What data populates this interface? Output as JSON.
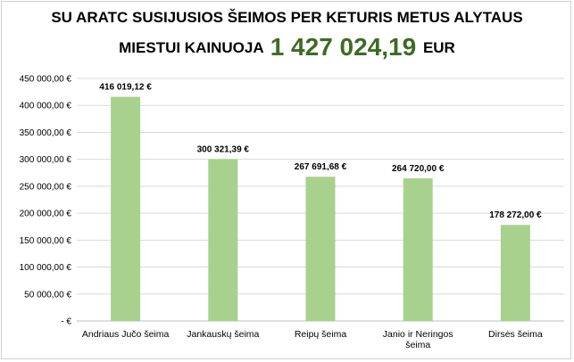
{
  "chart_data": {
    "type": "bar",
    "title_line1": "SU ARATC SUSIJUSIOS ŠEIMOS PER KETURIS METUS ALYTAUS",
    "title_line2_prefix": "MIESTUI KAINUOJA",
    "title_amount": "1 427 024,19",
    "title_unit": "EUR",
    "categories": [
      [
        "Andriaus Jučo šeima"
      ],
      [
        "Jankauskų šeima"
      ],
      [
        "Reipų šeima"
      ],
      [
        "Janio ir Neringos",
        "šeima"
      ],
      [
        "Dirsės šeima"
      ]
    ],
    "values": [
      416019.12,
      300321.39,
      267691.68,
      264720.0,
      178272.0
    ],
    "data_labels": [
      "416 019,12 €",
      "300 321,39 €",
      "267 691,68 €",
      "264 720,00 €",
      "178 272,00 €"
    ],
    "ylim": [
      0,
      450000
    ],
    "yticks": [
      0,
      50000,
      100000,
      150000,
      200000,
      250000,
      300000,
      350000,
      400000,
      450000
    ],
    "ytick_labels": [
      "-  €",
      "50 000,00 €",
      "100 000,00 €",
      "150 000,00 €",
      "200 000,00 €",
      "250 000,00 €",
      "300 000,00 €",
      "350 000,00 €",
      "400 000,00 €",
      "450 000,00 €"
    ],
    "grid": true,
    "bar_color": "#a9d18e",
    "grid_color": "#d9d9d9"
  }
}
